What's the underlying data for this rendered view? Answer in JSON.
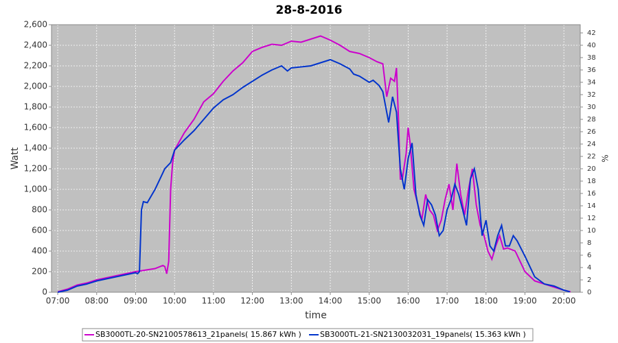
{
  "chart_data": {
    "type": "line",
    "title": "28-8-2016",
    "xlabel": "time",
    "ylabel": "Watt",
    "y2label": "%",
    "xlim": [
      6.84,
      20.42
    ],
    "xticks": [
      {
        "value": 7,
        "label": "07:00"
      },
      {
        "value": 8,
        "label": "08:00"
      },
      {
        "value": 9,
        "label": "09:00"
      },
      {
        "value": 10,
        "label": "10:00"
      },
      {
        "value": 11,
        "label": "11:00"
      },
      {
        "value": 12,
        "label": "12:00"
      },
      {
        "value": 13,
        "label": "13:00"
      },
      {
        "value": 14,
        "label": "14:00"
      },
      {
        "value": 15,
        "label": "15:00"
      },
      {
        "value": 16,
        "label": "16:00"
      },
      {
        "value": 17,
        "label": "17:00"
      },
      {
        "value": 18,
        "label": "18:00"
      },
      {
        "value": 19,
        "label": "19:00"
      },
      {
        "value": 20,
        "label": "20:00"
      }
    ],
    "ylim": [
      0,
      2600
    ],
    "yticks": [
      0,
      200,
      400,
      600,
      800,
      {
        "value": 1000,
        "label": "1,000"
      },
      {
        "value": 1200,
        "label": "1,200"
      },
      {
        "value": 1400,
        "label": "1,400"
      },
      {
        "value": 1600,
        "label": "1,600"
      },
      {
        "value": 1800,
        "label": "1,800"
      },
      {
        "value": 2000,
        "label": "2,000"
      },
      {
        "value": 2200,
        "label": "2,200"
      },
      {
        "value": 2400,
        "label": "2,400"
      },
      {
        "value": 2600,
        "label": "2,600"
      }
    ],
    "y2lim": [
      0,
      43.33
    ],
    "y2ticks": [
      0,
      2,
      4,
      6,
      8,
      10,
      12,
      14,
      16,
      18,
      20,
      22,
      24,
      26,
      28,
      30,
      32,
      34,
      36,
      38,
      40,
      42
    ],
    "grid": true,
    "legend": "bottom",
    "series": [
      {
        "name": "SB3000TL-20-SN2100578613_21panels( 15.867 kWh )",
        "color": "#cc00cc",
        "x": [
          7.0,
          7.25,
          7.5,
          7.75,
          8.0,
          8.25,
          8.5,
          8.75,
          9.0,
          9.25,
          9.5,
          9.7,
          9.75,
          9.8,
          9.85,
          9.9,
          9.95,
          10.0,
          10.25,
          10.5,
          10.75,
          11.0,
          11.25,
          11.5,
          11.75,
          12.0,
          12.25,
          12.5,
          12.75,
          13.0,
          13.25,
          13.5,
          13.75,
          14.0,
          14.25,
          14.5,
          14.75,
          15.0,
          15.2,
          15.35,
          15.45,
          15.55,
          15.65,
          15.7,
          15.75,
          15.8,
          15.85,
          15.95,
          16.0,
          16.05,
          16.15,
          16.25,
          16.35,
          16.45,
          16.55,
          16.65,
          16.75,
          16.85,
          16.95,
          17.05,
          17.15,
          17.25,
          17.35,
          17.45,
          17.55,
          17.65,
          17.75,
          17.85,
          17.95,
          18.05,
          18.15,
          18.25,
          18.35,
          18.45,
          18.55,
          18.75,
          19.0,
          19.25,
          19.5,
          19.75,
          20.0,
          20.17
        ],
        "values": [
          5,
          30,
          70,
          90,
          120,
          140,
          160,
          180,
          200,
          215,
          230,
          260,
          250,
          180,
          300,
          1000,
          1250,
          1380,
          1550,
          1680,
          1850,
          1930,
          2050,
          2150,
          2230,
          2340,
          2380,
          2410,
          2400,
          2440,
          2430,
          2460,
          2490,
          2450,
          2400,
          2340,
          2320,
          2280,
          2240,
          2220,
          1900,
          2080,
          2050,
          2180,
          1700,
          1100,
          1100,
          1350,
          1600,
          1450,
          1000,
          850,
          700,
          950,
          800,
          750,
          600,
          700,
          900,
          1050,
          800,
          1250,
          950,
          750,
          1000,
          1200,
          850,
          650,
          550,
          400,
          320,
          450,
          550,
          420,
          430,
          400,
          200,
          110,
          80,
          50,
          20,
          5
        ]
      },
      {
        "name": "SB3000TL-21-SN2130032031_19panels( 15.363 kWh )",
        "color": "#0033cc",
        "x": [
          7.0,
          7.25,
          7.5,
          7.75,
          8.0,
          8.25,
          8.5,
          8.75,
          9.0,
          9.05,
          9.1,
          9.15,
          9.2,
          9.3,
          9.5,
          9.75,
          9.9,
          10.0,
          10.25,
          10.5,
          10.75,
          11.0,
          11.25,
          11.5,
          11.75,
          12.0,
          12.25,
          12.5,
          12.75,
          12.9,
          13.0,
          13.25,
          13.5,
          13.75,
          14.0,
          14.25,
          14.5,
          14.6,
          14.75,
          15.0,
          15.1,
          15.25,
          15.35,
          15.5,
          15.6,
          15.7,
          15.8,
          15.9,
          16.0,
          16.1,
          16.2,
          16.3,
          16.4,
          16.5,
          16.6,
          16.7,
          16.8,
          16.9,
          17.0,
          17.1,
          17.2,
          17.3,
          17.4,
          17.5,
          17.6,
          17.7,
          17.8,
          17.9,
          18.0,
          18.1,
          18.2,
          18.3,
          18.4,
          18.5,
          18.6,
          18.7,
          18.8,
          19.0,
          19.25,
          19.5,
          19.75,
          20.0,
          20.15
        ],
        "values": [
          0,
          20,
          60,
          80,
          110,
          130,
          150,
          170,
          190,
          180,
          200,
          800,
          880,
          870,
          1000,
          1200,
          1260,
          1380,
          1480,
          1570,
          1680,
          1790,
          1870,
          1920,
          1990,
          2050,
          2110,
          2160,
          2200,
          2150,
          2180,
          2190,
          2200,
          2230,
          2260,
          2220,
          2170,
          2120,
          2100,
          2040,
          2060,
          2010,
          1950,
          1650,
          1900,
          1750,
          1200,
          1000,
          1300,
          1450,
          950,
          750,
          650,
          900,
          850,
          750,
          550,
          600,
          800,
          900,
          1050,
          950,
          800,
          650,
          1100,
          1200,
          1000,
          550,
          700,
          450,
          400,
          550,
          650,
          450,
          450,
          550,
          500,
          350,
          150,
          80,
          60,
          20,
          5
        ]
      }
    ]
  }
}
